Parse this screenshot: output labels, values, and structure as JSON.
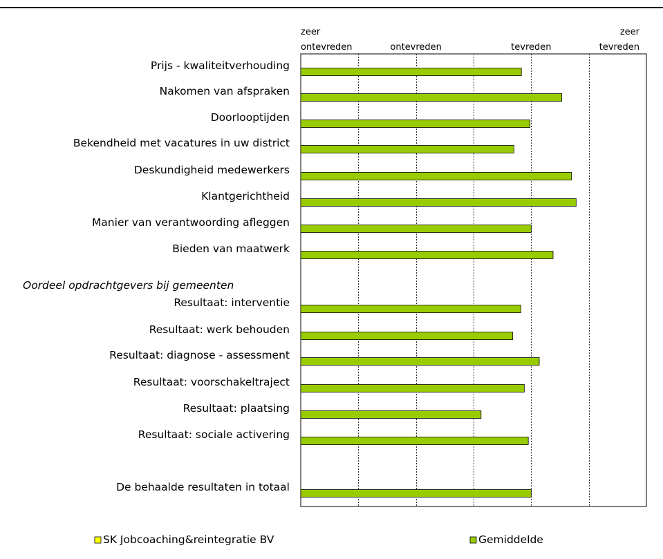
{
  "chart_data": {
    "type": "bar",
    "orientation": "horizontal",
    "xlim": [
      1,
      7
    ],
    "x_ticks": [
      {
        "value": 1,
        "lines": [
          "zeer",
          "ontevreden"
        ]
      },
      {
        "value": 3,
        "lines": [
          "ontevreden"
        ]
      },
      {
        "value": 5,
        "lines": [
          "tevreden"
        ]
      },
      {
        "value": 7,
        "lines": [
          "zeer",
          "tevreden"
        ]
      }
    ],
    "grid": "vertical dotted",
    "section_heading": "Oordeel opdrachtgevers bij gemeenten",
    "categories": [
      "Prijs - kwaliteitverhouding",
      "Nakomen van afspraken",
      "Doorlooptijden",
      "Bekendheid met vacatures in uw district",
      "Deskundigheid medewerkers",
      "Klantgerichtheid",
      "Manier van verantwoording afleggen",
      "Bieden van maatwerk",
      "Resultaat: interventie",
      "Resultaat: werk behouden",
      "Resultaat: diagnose - assessment",
      "Resultaat: voorschakeltraject",
      "Resultaat: plaatsing",
      "Resultaat: sociale activering",
      "De behaalde resultaten in totaal"
    ],
    "series": [
      {
        "name": "SK Jobcoaching&reintegratie BV",
        "color": "#ffff00",
        "values": [
          null,
          null,
          null,
          null,
          null,
          null,
          null,
          null,
          null,
          null,
          null,
          null,
          null,
          null,
          null
        ]
      },
      {
        "name": "Gemiddelde",
        "color": "#99cc00",
        "values": [
          4.83,
          5.53,
          4.98,
          4.7,
          5.7,
          5.78,
          5.0,
          5.38,
          4.82,
          4.68,
          5.14,
          4.88,
          4.13,
          4.95,
          5.0
        ]
      }
    ],
    "legend_position": "bottom"
  }
}
